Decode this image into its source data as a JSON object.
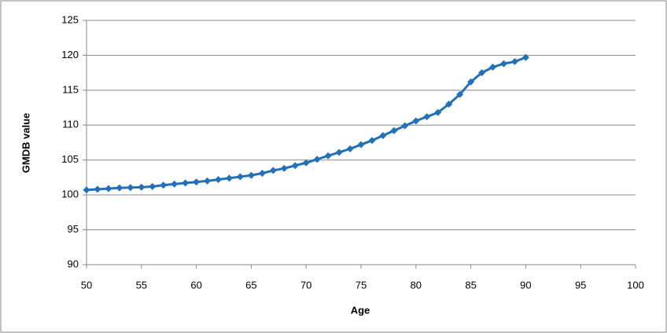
{
  "chart_data": {
    "type": "line",
    "x": [
      50,
      51,
      52,
      53,
      54,
      55,
      56,
      57,
      58,
      59,
      60,
      61,
      62,
      63,
      64,
      65,
      66,
      67,
      68,
      69,
      70,
      71,
      72,
      73,
      74,
      75,
      76,
      77,
      78,
      79,
      80,
      81,
      82,
      83,
      84,
      85,
      86,
      87,
      88,
      89,
      90
    ],
    "values": [
      100.7,
      100.8,
      100.9,
      101.0,
      101.05,
      101.1,
      101.2,
      101.4,
      101.55,
      101.7,
      101.85,
      102.0,
      102.2,
      102.4,
      102.6,
      102.8,
      103.1,
      103.5,
      103.8,
      104.2,
      104.6,
      105.1,
      105.6,
      106.1,
      106.6,
      107.2,
      107.8,
      108.5,
      109.2,
      109.9,
      110.6,
      111.2,
      111.8,
      113.0,
      114.4,
      116.2,
      117.5,
      118.3,
      118.8,
      119.1,
      119.7
    ],
    "color": "#2270b8",
    "x_label": "Age",
    "y_label": "GMDB value",
    "xlim": [
      50,
      100
    ],
    "xticks": [
      50,
      55,
      60,
      65,
      70,
      75,
      80,
      85,
      90,
      95,
      100
    ],
    "ylim": [
      90,
      125
    ],
    "yticks": [
      90,
      95,
      100,
      105,
      110,
      115,
      120,
      125
    ],
    "grid": true
  }
}
